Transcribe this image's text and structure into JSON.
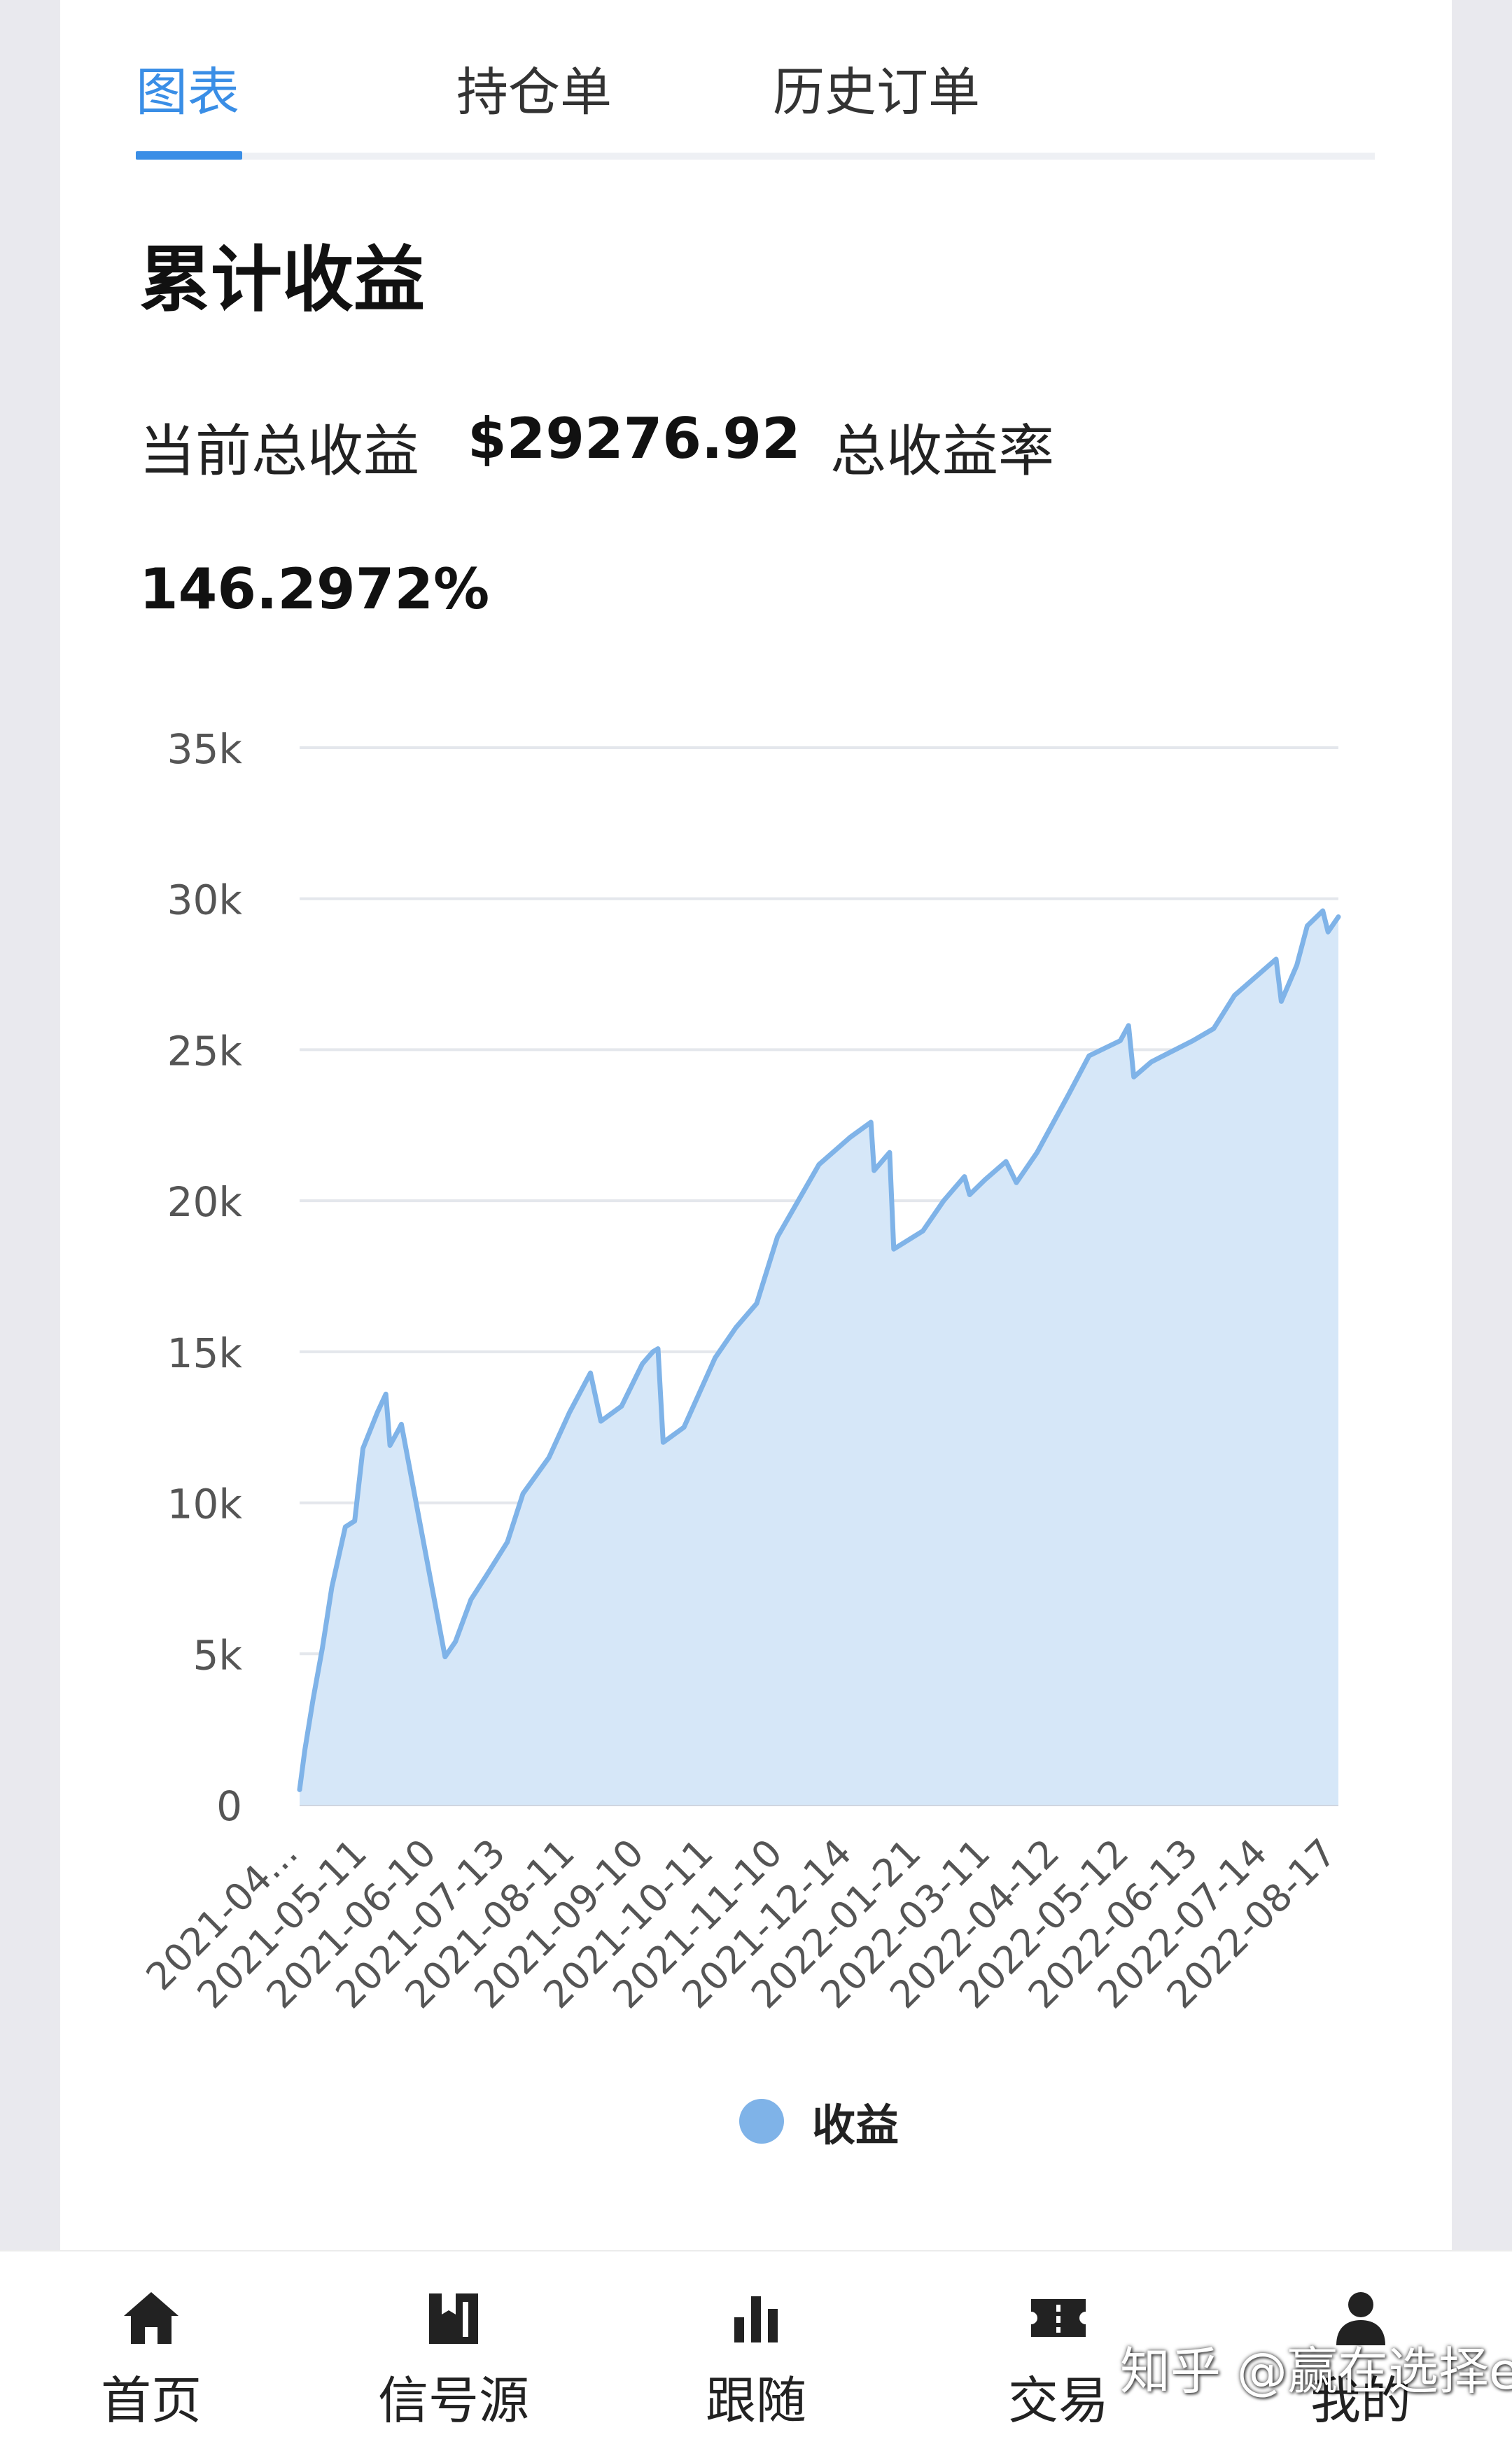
{
  "tabs": [
    {
      "label": "图表",
      "active": true
    },
    {
      "label": "持仓单",
      "active": false
    },
    {
      "label": "历史订单",
      "active": false
    }
  ],
  "section_title": "累计收益",
  "summary": {
    "total_profit_label": "当前总收益",
    "total_profit_value": "$29276.92",
    "total_rate_label": "总收益率",
    "total_rate_value": "146.2972%"
  },
  "chart_data": {
    "type": "area",
    "series": [
      {
        "name": "收益",
        "color": "#7fb3e8",
        "fill": "#d6e7f8",
        "points": [
          [
            0.0,
            500
          ],
          [
            0.005,
            1800
          ],
          [
            0.013,
            3500
          ],
          [
            0.022,
            5200
          ],
          [
            0.031,
            7200
          ],
          [
            0.044,
            9200
          ],
          [
            0.053,
            9400
          ],
          [
            0.061,
            11800
          ],
          [
            0.075,
            13000
          ],
          [
            0.083,
            13600
          ],
          [
            0.087,
            11900
          ],
          [
            0.095,
            12400
          ],
          [
            0.098,
            12600
          ],
          [
            0.14,
            4900
          ],
          [
            0.15,
            5400
          ],
          [
            0.165,
            6800
          ],
          [
            0.18,
            7600
          ],
          [
            0.2,
            8700
          ],
          [
            0.215,
            10300
          ],
          [
            0.24,
            11500
          ],
          [
            0.26,
            13000
          ],
          [
            0.28,
            14300
          ],
          [
            0.29,
            12700
          ],
          [
            0.31,
            13200
          ],
          [
            0.33,
            14600
          ],
          [
            0.34,
            15000
          ],
          [
            0.345,
            15100
          ],
          [
            0.35,
            12000
          ],
          [
            0.37,
            12500
          ],
          [
            0.4,
            14800
          ],
          [
            0.42,
            15800
          ],
          [
            0.44,
            16600
          ],
          [
            0.46,
            18800
          ],
          [
            0.48,
            20000
          ],
          [
            0.5,
            21200
          ],
          [
            0.53,
            22100
          ],
          [
            0.55,
            22600
          ],
          [
            0.553,
            21000
          ],
          [
            0.568,
            21600
          ],
          [
            0.572,
            18400
          ],
          [
            0.6,
            19000
          ],
          [
            0.62,
            20000
          ],
          [
            0.64,
            20800
          ],
          [
            0.645,
            20200
          ],
          [
            0.66,
            20700
          ],
          [
            0.68,
            21300
          ],
          [
            0.69,
            20600
          ],
          [
            0.71,
            21600
          ],
          [
            0.74,
            23500
          ],
          [
            0.76,
            24800
          ],
          [
            0.79,
            25300
          ],
          [
            0.798,
            25800
          ],
          [
            0.803,
            24100
          ],
          [
            0.82,
            24600
          ],
          [
            0.86,
            25300
          ],
          [
            0.88,
            25700
          ],
          [
            0.9,
            26800
          ],
          [
            0.92,
            27400
          ],
          [
            0.94,
            28000
          ],
          [
            0.945,
            26600
          ],
          [
            0.96,
            27800
          ],
          [
            0.97,
            29100
          ],
          [
            0.985,
            29600
          ],
          [
            0.99,
            28900
          ],
          [
            1.0,
            29400
          ]
        ]
      }
    ],
    "x_tick_labels": [
      "2021-04...",
      "2021-05-11",
      "2021-06-10",
      "2021-07-13",
      "2021-08-11",
      "2021-09-10",
      "2021-10-11",
      "2021-11-10",
      "2021-12-14",
      "2022-01-21",
      "2022-03-11",
      "2022-04-12",
      "2022-05-12",
      "2022-06-13",
      "2022-07-14",
      "2022-08-17"
    ],
    "y_ticks": [
      0,
      5000,
      10000,
      15000,
      20000,
      25000,
      30000,
      35000
    ],
    "y_tick_labels": [
      "0",
      "5k",
      "10k",
      "15k",
      "20k",
      "25k",
      "30k",
      "35k"
    ],
    "ylim": [
      0,
      35000
    ],
    "grid": true,
    "legend_position": "bottom-center"
  },
  "legend": {
    "label": "收益"
  },
  "bottom_nav": [
    {
      "label": "首页",
      "icon": "home-icon"
    },
    {
      "label": "信号源",
      "icon": "signal-source-icon"
    },
    {
      "label": "跟随",
      "icon": "follow-chart-icon"
    },
    {
      "label": "交易",
      "icon": "trade-ticket-icon"
    },
    {
      "label": "我的",
      "icon": "user-icon"
    }
  ],
  "watermark": "知乎 @赢在选择ea"
}
